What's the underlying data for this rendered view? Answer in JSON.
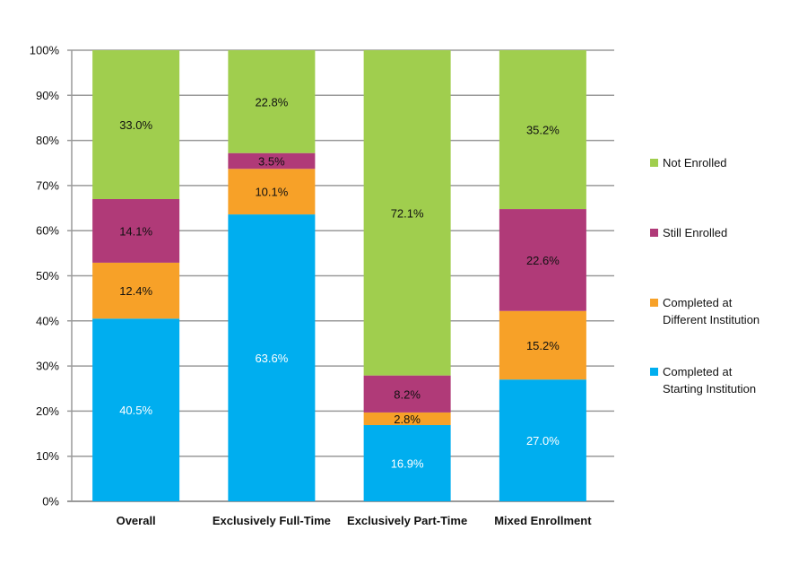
{
  "chart_data": {
    "type": "stacked-bar",
    "title": "",
    "xlabel": "",
    "ylabel": "",
    "ylim": [
      0,
      100
    ],
    "yticks": [
      "0%",
      "10%",
      "20%",
      "30%",
      "40%",
      "50%",
      "60%",
      "70%",
      "80%",
      "90%",
      "100%"
    ],
    "grid": true,
    "legend_position": "right",
    "categories": [
      "Overall",
      "Exclusively Full-Time",
      "Exclusively Part-Time",
      "Mixed Enrollment"
    ],
    "series": [
      {
        "name": "Completed at Starting Institution",
        "legend_lines": [
          "Completed at",
          "Starting Institution"
        ],
        "color": "#00AEEF",
        "label_color": "#ffffff",
        "values": [
          40.5,
          63.6,
          16.9,
          27.0
        ],
        "labels": [
          "40.5%",
          "63.6%",
          "16.9%",
          "27.0%"
        ]
      },
      {
        "name": "Completed at Different Institution",
        "legend_lines": [
          "Completed at",
          "Different Institution"
        ],
        "color": "#F7A128",
        "label_color": "#111111",
        "values": [
          12.4,
          10.1,
          2.8,
          15.2
        ],
        "labels": [
          "12.4%",
          "10.1%",
          "2.8%",
          "15.2%"
        ]
      },
      {
        "name": "Still Enrolled",
        "legend_lines": [
          "Still Enrolled"
        ],
        "color": "#B03A78",
        "label_color": "#111111",
        "values": [
          14.1,
          3.5,
          8.2,
          22.6
        ],
        "labels": [
          "14.1%",
          "3.5%",
          "8.2%",
          "22.6%"
        ]
      },
      {
        "name": "Not Enrolled",
        "legend_lines": [
          "Not Enrolled"
        ],
        "color": "#A0CE4E",
        "label_color": "#111111",
        "values": [
          33.0,
          22.8,
          72.1,
          35.2
        ],
        "labels": [
          "33.0%",
          "22.8%",
          "72.1%",
          "35.2%"
        ]
      }
    ]
  }
}
